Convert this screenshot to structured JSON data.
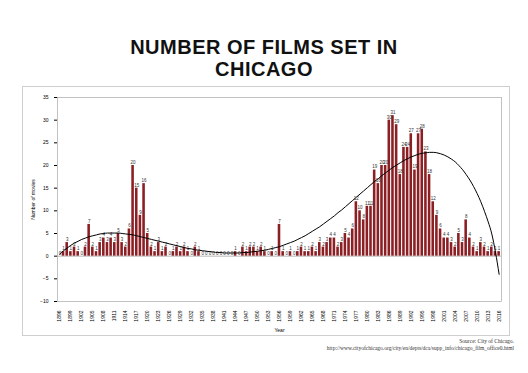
{
  "chart_data": {
    "type": "bar",
    "title": "NUMBER OF FILMS SET IN CHICAGO",
    "x_label": "Year",
    "y_label": "Number of movies",
    "source": [
      "Source: City of Chicago.",
      "http://www.cityofchicago.org/city/en/depts/dca/supp_info/chicago_film_office0.html"
    ],
    "categories": [
      "1896",
      null,
      null,
      "1899",
      null,
      null,
      "1902",
      null,
      null,
      "1905",
      null,
      null,
      "1908",
      null,
      null,
      "1911",
      null,
      null,
      "1914",
      null,
      null,
      "1917",
      null,
      null,
      "1920",
      null,
      null,
      "1923",
      null,
      null,
      "1926",
      null,
      null,
      "1929",
      null,
      null,
      "1932",
      null,
      null,
      "1935",
      null,
      null,
      "1938",
      null,
      null,
      "1941",
      null,
      null,
      "1944",
      null,
      null,
      "1947",
      null,
      null,
      "1950",
      null,
      null,
      "1953",
      null,
      null,
      "1956",
      null,
      null,
      "1959",
      null,
      null,
      "1962",
      null,
      null,
      "1965",
      null,
      null,
      "1968",
      null,
      null,
      "1971",
      null,
      null,
      "1974",
      null,
      null,
      "1977",
      null,
      null,
      "1980",
      null,
      null,
      "1983",
      null,
      null,
      "1986",
      null,
      null,
      "1989",
      null,
      null,
      "1992",
      null,
      null,
      "1995",
      null,
      null,
      "1998",
      null,
      null,
      "2001",
      null,
      null,
      "2004",
      null,
      null,
      "2007",
      null,
      null,
      "2010",
      null,
      null,
      "2013",
      null,
      null,
      "2016"
    ],
    "series": [
      {
        "type": "bar",
        "color": "#8b1f24",
        "values": [
          0,
          1,
          3,
          1,
          2,
          1,
          0,
          2,
          7,
          2,
          1,
          3,
          4,
          3,
          4,
          3,
          5,
          3,
          2,
          6,
          20,
          15,
          9,
          16,
          5,
          2,
          1,
          3,
          1,
          2,
          0,
          1,
          2,
          1,
          2,
          1,
          0,
          2,
          1,
          0,
          0,
          0,
          0,
          0,
          0,
          0,
          0,
          0,
          1,
          0,
          2,
          1,
          2,
          2,
          1,
          2,
          1,
          0,
          1,
          0,
          7,
          1,
          0,
          1,
          0,
          1,
          2,
          1,
          1,
          2,
          1,
          3,
          2,
          3,
          4,
          4,
          2,
          3,
          5,
          4,
          6,
          12,
          10,
          8,
          11,
          11,
          19,
          16,
          20,
          20,
          30,
          31,
          29,
          18,
          24,
          24,
          27,
          19,
          27,
          28,
          23,
          18,
          12,
          9,
          6,
          4,
          4,
          3,
          2,
          5,
          3,
          8,
          4,
          2,
          1,
          3,
          2,
          1,
          2,
          1,
          1
        ]
      },
      {
        "type": "line",
        "color": "#000000",
        "values": [
          0.5,
          1.2,
          1.8,
          2.4,
          2.9,
          3.3,
          3.7,
          4.0,
          4.3,
          4.5,
          4.7,
          4.9,
          5.0,
          5.1,
          5.1,
          5.1,
          5.1,
          5.0,
          4.9,
          4.8,
          4.7,
          4.5,
          4.3,
          4.1,
          3.9,
          3.7,
          3.5,
          3.3,
          3.1,
          2.9,
          2.7,
          2.5,
          2.3,
          2.1,
          1.9,
          1.7,
          1.6,
          1.4,
          1.3,
          1.2,
          1.1,
          1.0,
          0.9,
          0.8,
          0.8,
          0.7,
          0.7,
          0.7,
          0.7,
          0.7,
          0.8,
          0.8,
          0.9,
          1.0,
          1.1,
          1.2,
          1.3,
          1.5,
          1.7,
          1.9,
          2.1,
          2.4,
          2.7,
          3.0,
          3.3,
          3.7,
          4.1,
          4.5,
          5.0,
          5.5,
          6.0,
          6.5,
          7.1,
          7.7,
          8.3,
          8.9,
          9.6,
          10.2,
          10.9,
          11.6,
          12.3,
          13.0,
          13.7,
          14.4,
          15.1,
          15.8,
          16.5,
          17.1,
          17.8,
          18.4,
          19.0,
          19.6,
          20.1,
          20.6,
          21.1,
          21.5,
          21.9,
          22.2,
          22.5,
          22.7,
          22.8,
          22.9,
          22.9,
          22.8,
          22.6,
          22.3,
          21.9,
          21.4,
          20.8,
          20.0,
          19.1,
          18.0,
          16.8,
          15.4,
          13.8,
          12.0,
          9.9,
          7.6,
          4.9,
          0.9,
          -4.0
        ]
      }
    ],
    "ylim": [
      -10,
      35
    ],
    "yticks": [
      -10,
      -5,
      0,
      5,
      10,
      15,
      20,
      25,
      30,
      35
    ],
    "grid": false,
    "data_labels": true
  }
}
